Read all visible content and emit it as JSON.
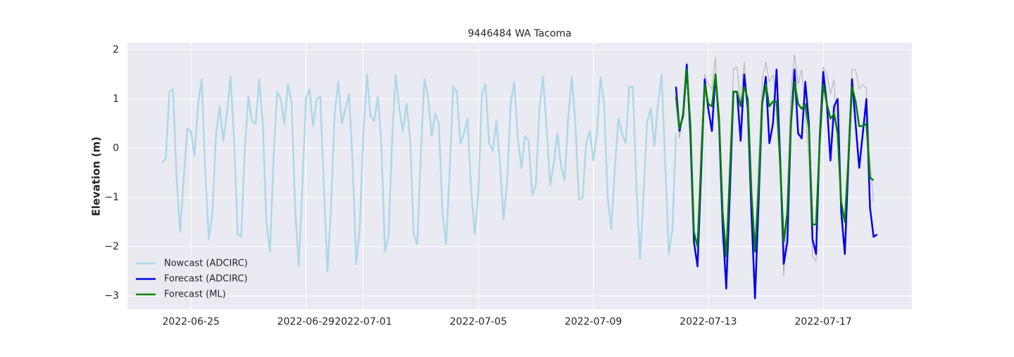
{
  "chart_data": {
    "type": "line",
    "title": "9446484 WA Tacoma",
    "ylabel": "Elevation (m)",
    "xlim": [
      "2022-06-22 19:00",
      "2022-07-20 02:00"
    ],
    "xticks": [
      "2022-06-25",
      "2022-06-29",
      "2022-07-01",
      "2022-07-05",
      "2022-07-09",
      "2022-07-13",
      "2022-07-17"
    ],
    "ylim": [
      -3.27,
      2.14
    ],
    "yticks": [
      {
        "value": -3,
        "label": "−3"
      },
      {
        "value": -2,
        "label": "−2"
      },
      {
        "value": -1,
        "label": "−1"
      },
      0,
      1,
      2
    ],
    "grid": true,
    "legend": "lower left",
    "series": [
      {
        "color": "#b0b0b0",
        "width": 1,
        "x": [
          "2022-07-11 21:00",
          "2022-07-12 00:00",
          "2022-07-12 03:00",
          "2022-07-12 06:00",
          "2022-07-12 09:00",
          "2022-07-12 12:00",
          "2022-07-12 15:00",
          "2022-07-12 18:00",
          "2022-07-12 21:00",
          "2022-07-13 00:00",
          "2022-07-13 03:00",
          "2022-07-13 06:00",
          "2022-07-13 09:00",
          "2022-07-13 12:00",
          "2022-07-13 15:00",
          "2022-07-13 18:00",
          "2022-07-13 21:00",
          "2022-07-14 00:00",
          "2022-07-14 03:00",
          "2022-07-14 06:00",
          "2022-07-14 09:00",
          "2022-07-14 12:00",
          "2022-07-14 15:00",
          "2022-07-14 18:00",
          "2022-07-14 21:00",
          "2022-07-15 00:00",
          "2022-07-15 03:00",
          "2022-07-15 06:00",
          "2022-07-15 09:00",
          "2022-07-15 12:00",
          "2022-07-15 15:00",
          "2022-07-15 18:00",
          "2022-07-15 21:00",
          "2022-07-16 00:00",
          "2022-07-16 03:00",
          "2022-07-16 06:00",
          "2022-07-16 09:00",
          "2022-07-16 12:00",
          "2022-07-16 15:00",
          "2022-07-16 18:00",
          "2022-07-16 21:00",
          "2022-07-17 00:00",
          "2022-07-17 03:00",
          "2022-07-17 06:00",
          "2022-07-17 09:00",
          "2022-07-17 12:00",
          "2022-07-17 15:00",
          "2022-07-17 18:00",
          "2022-07-17 21:00",
          "2022-07-18 00:00",
          "2022-07-18 03:00",
          "2022-07-18 06:00",
          "2022-07-18 09:00",
          "2022-07-18 12:00",
          "2022-07-18 15:00",
          "2022-07-18 18:00"
        ],
        "values": [
          0.9,
          0.2,
          0.8,
          1.75,
          0.2,
          -1.7,
          -2.0,
          0.2,
          1.5,
          1.3,
          1.2,
          1.85,
          0.3,
          -1.9,
          -2.3,
          -0.2,
          1.6,
          1.65,
          0.9,
          1.75,
          0.8,
          -1.4,
          -2.1,
          -0.3,
          1.4,
          1.75,
          1.35,
          1.5,
          0.9,
          -0.6,
          -2.6,
          -1.0,
          1.2,
          1.9,
          1.3,
          1.6,
          0.7,
          -0.2,
          -2.2,
          -2.3,
          0.2,
          1.65,
          1.5,
          1.1,
          1.4,
          0.1,
          -1.0,
          -2.1,
          0.2,
          1.6,
          1.6,
          1.2,
          1.3,
          1.2,
          -0.3,
          -1.1
        ]
      },
      {
        "name": "Nowcast (ADCIRC)",
        "color": "#add8e6",
        "width": 2.5,
        "x": [
          "2022-06-24 00:00",
          "2022-06-24 03:00",
          "2022-06-24 06:00",
          "2022-06-24 09:00",
          "2022-06-24 12:00",
          "2022-06-24 15:00",
          "2022-06-24 18:00",
          "2022-06-24 21:00",
          "2022-06-25 00:00",
          "2022-06-25 03:00",
          "2022-06-25 06:00",
          "2022-06-25 09:00",
          "2022-06-25 12:00",
          "2022-06-25 15:00",
          "2022-06-25 18:00",
          "2022-06-25 21:00",
          "2022-06-26 00:00",
          "2022-06-26 03:00",
          "2022-06-26 06:00",
          "2022-06-26 09:00",
          "2022-06-26 12:00",
          "2022-06-26 15:00",
          "2022-06-26 18:00",
          "2022-06-26 21:00",
          "2022-06-27 00:00",
          "2022-06-27 03:00",
          "2022-06-27 06:00",
          "2022-06-27 09:00",
          "2022-06-27 12:00",
          "2022-06-27 15:00",
          "2022-06-27 18:00",
          "2022-06-27 21:00",
          "2022-06-28 00:00",
          "2022-06-28 03:00",
          "2022-06-28 06:00",
          "2022-06-28 09:00",
          "2022-06-28 12:00",
          "2022-06-28 15:00",
          "2022-06-28 18:00",
          "2022-06-28 21:00",
          "2022-06-29 00:00",
          "2022-06-29 03:00",
          "2022-06-29 06:00",
          "2022-06-29 09:00",
          "2022-06-29 12:00",
          "2022-06-29 15:00",
          "2022-06-29 18:00",
          "2022-06-29 21:00",
          "2022-06-30 00:00",
          "2022-06-30 03:00",
          "2022-06-30 06:00",
          "2022-06-30 09:00",
          "2022-06-30 12:00",
          "2022-06-30 15:00",
          "2022-06-30 18:00",
          "2022-06-30 21:00",
          "2022-07-01 00:00",
          "2022-07-01 03:00",
          "2022-07-01 06:00",
          "2022-07-01 09:00",
          "2022-07-01 12:00",
          "2022-07-01 15:00",
          "2022-07-01 18:00",
          "2022-07-01 21:00",
          "2022-07-02 00:00",
          "2022-07-02 03:00",
          "2022-07-02 06:00",
          "2022-07-02 09:00",
          "2022-07-02 12:00",
          "2022-07-02 15:00",
          "2022-07-02 18:00",
          "2022-07-02 21:00",
          "2022-07-03 00:00",
          "2022-07-03 03:00",
          "2022-07-03 06:00",
          "2022-07-03 09:00",
          "2022-07-03 12:00",
          "2022-07-03 15:00",
          "2022-07-03 18:00",
          "2022-07-03 21:00",
          "2022-07-04 00:00",
          "2022-07-04 03:00",
          "2022-07-04 06:00",
          "2022-07-04 09:00",
          "2022-07-04 12:00",
          "2022-07-04 15:00",
          "2022-07-04 18:00",
          "2022-07-04 21:00",
          "2022-07-05 00:00",
          "2022-07-05 03:00",
          "2022-07-05 06:00",
          "2022-07-05 09:00",
          "2022-07-05 12:00",
          "2022-07-05 15:00",
          "2022-07-05 18:00",
          "2022-07-05 21:00",
          "2022-07-06 00:00",
          "2022-07-06 03:00",
          "2022-07-06 06:00",
          "2022-07-06 09:00",
          "2022-07-06 12:00",
          "2022-07-06 15:00",
          "2022-07-06 18:00",
          "2022-07-06 21:00",
          "2022-07-07 00:00",
          "2022-07-07 03:00",
          "2022-07-07 06:00",
          "2022-07-07 09:00",
          "2022-07-07 12:00",
          "2022-07-07 15:00",
          "2022-07-07 18:00",
          "2022-07-07 21:00",
          "2022-07-08 00:00",
          "2022-07-08 03:00",
          "2022-07-08 06:00",
          "2022-07-08 09:00",
          "2022-07-08 12:00",
          "2022-07-08 15:00",
          "2022-07-08 18:00",
          "2022-07-08 21:00",
          "2022-07-09 00:00",
          "2022-07-09 03:00",
          "2022-07-09 06:00",
          "2022-07-09 09:00",
          "2022-07-09 12:00",
          "2022-07-09 15:00",
          "2022-07-09 18:00",
          "2022-07-09 21:00",
          "2022-07-10 00:00",
          "2022-07-10 03:00",
          "2022-07-10 06:00",
          "2022-07-10 09:00",
          "2022-07-10 12:00",
          "2022-07-10 15:00",
          "2022-07-10 18:00",
          "2022-07-10 21:00",
          "2022-07-11 00:00",
          "2022-07-11 03:00",
          "2022-07-11 06:00",
          "2022-07-11 09:00",
          "2022-07-11 12:00",
          "2022-07-11 15:00",
          "2022-07-11 18:00",
          "2022-07-11 21:00"
        ],
        "values": [
          -0.3,
          -0.2,
          1.15,
          1.2,
          -0.6,
          -1.7,
          -0.6,
          0.4,
          0.35,
          -0.15,
          0.9,
          1.4,
          -0.5,
          -1.85,
          -1.3,
          0.3,
          0.85,
          0.15,
          0.7,
          1.45,
          0.2,
          -1.75,
          -1.8,
          0,
          1.05,
          0.55,
          0.5,
          1.4,
          0.5,
          -1.5,
          -2.1,
          -0.2,
          1.15,
          1.0,
          0.5,
          1.3,
          0.95,
          -1.2,
          -2.4,
          -0.8,
          1.0,
          1.2,
          0.45,
          1.0,
          1.05,
          -0.8,
          -2.5,
          -1.2,
          0.7,
          1.35,
          0.5,
          0.8,
          1.1,
          -0.3,
          -2.35,
          -1.6,
          0.3,
          1.5,
          0.65,
          0.55,
          1.05,
          0.1,
          -2.1,
          -1.8,
          0.2,
          1.5,
          0.8,
          0.35,
          0.9,
          0.2,
          -1.75,
          -1.95,
          -0.1,
          1.4,
          1.05,
          0.25,
          0.7,
          0.5,
          -1.3,
          -1.95,
          -0.5,
          1.25,
          1.15,
          0.1,
          0.3,
          0.6,
          -0.85,
          -1.75,
          -0.9,
          1.1,
          1.3,
          0.1,
          -0.05,
          0.55,
          -0.3,
          -1.45,
          -0.7,
          0.9,
          1.35,
          0.2,
          -0.4,
          0.25,
          0.15,
          -0.95,
          -0.75,
          0.8,
          1.45,
          0.4,
          -0.75,
          -0.3,
          0.3,
          -0.35,
          -0.65,
          0.6,
          1.45,
          0.5,
          -1.05,
          -1.0,
          0.1,
          0.35,
          -0.25,
          0.3,
          1.45,
          0.9,
          -1.0,
          -1.65,
          -0.4,
          0.6,
          0.3,
          0.1,
          1.25,
          1.25,
          -0.8,
          -2.25,
          -0.9,
          0.55,
          0.8,
          0.05,
          0.9,
          1.5,
          -0.3,
          -2.15,
          -1.65,
          0.3
        ]
      },
      {
        "name": "Forecast (ADCIRC)",
        "color": "#0000ee",
        "width": 2.5,
        "x": [
          "2022-07-11 21:00",
          "2022-07-12 00:00",
          "2022-07-12 03:00",
          "2022-07-12 06:00",
          "2022-07-12 09:00",
          "2022-07-12 12:00",
          "2022-07-12 15:00",
          "2022-07-12 18:00",
          "2022-07-12 21:00",
          "2022-07-13 00:00",
          "2022-07-13 03:00",
          "2022-07-13 06:00",
          "2022-07-13 09:00",
          "2022-07-13 12:00",
          "2022-07-13 15:00",
          "2022-07-13 18:00",
          "2022-07-13 21:00",
          "2022-07-14 00:00",
          "2022-07-14 03:00",
          "2022-07-14 06:00",
          "2022-07-14 09:00",
          "2022-07-14 12:00",
          "2022-07-14 15:00",
          "2022-07-14 18:00",
          "2022-07-14 21:00",
          "2022-07-15 00:00",
          "2022-07-15 03:00",
          "2022-07-15 06:00",
          "2022-07-15 09:00",
          "2022-07-15 12:00",
          "2022-07-15 15:00",
          "2022-07-15 18:00",
          "2022-07-15 21:00",
          "2022-07-16 00:00",
          "2022-07-16 03:00",
          "2022-07-16 06:00",
          "2022-07-16 09:00",
          "2022-07-16 12:00",
          "2022-07-16 15:00",
          "2022-07-16 18:00",
          "2022-07-16 21:00",
          "2022-07-17 00:00",
          "2022-07-17 03:00",
          "2022-07-17 06:00",
          "2022-07-17 09:00",
          "2022-07-17 12:00",
          "2022-07-17 15:00",
          "2022-07-17 18:00",
          "2022-07-17 21:00",
          "2022-07-18 00:00",
          "2022-07-18 03:00",
          "2022-07-18 06:00",
          "2022-07-18 09:00",
          "2022-07-18 12:00",
          "2022-07-18 15:00",
          "2022-07-18 18:00",
          "2022-07-18 21:00"
        ],
        "values": [
          1.25,
          0.35,
          0.7,
          1.7,
          0.3,
          -1.9,
          -2.4,
          -0.5,
          1.4,
          0.8,
          0.35,
          1.5,
          0.5,
          -1.6,
          -2.85,
          -0.9,
          1.15,
          1.15,
          0.15,
          1.5,
          0.8,
          -1.3,
          -3.05,
          -1.1,
          0.9,
          1.45,
          0.1,
          0.5,
          1.6,
          -0.2,
          -2.35,
          -1.9,
          0.5,
          1.6,
          0.3,
          0.2,
          1.35,
          0.5,
          -1.85,
          -2.15,
          0.2,
          1.55,
          0.9,
          -0.25,
          0.85,
          1.0,
          -1.3,
          -2.15,
          -0.3,
          1.4,
          0.5,
          -0.4,
          0.3,
          1.0,
          -1.2,
          -1.8,
          -1.75
        ]
      },
      {
        "name": "Forecast (ML)",
        "color": "#008000",
        "width": 2.5,
        "x": [
          "2022-07-11 21:00",
          "2022-07-12 00:00",
          "2022-07-12 03:00",
          "2022-07-12 06:00",
          "2022-07-12 09:00",
          "2022-07-12 12:00",
          "2022-07-12 15:00",
          "2022-07-12 18:00",
          "2022-07-12 21:00",
          "2022-07-13 00:00",
          "2022-07-13 03:00",
          "2022-07-13 06:00",
          "2022-07-13 09:00",
          "2022-07-13 12:00",
          "2022-07-13 15:00",
          "2022-07-13 18:00",
          "2022-07-13 21:00",
          "2022-07-14 00:00",
          "2022-07-14 03:00",
          "2022-07-14 06:00",
          "2022-07-14 09:00",
          "2022-07-14 12:00",
          "2022-07-14 15:00",
          "2022-07-14 18:00",
          "2022-07-14 21:00",
          "2022-07-15 00:00",
          "2022-07-15 03:00",
          "2022-07-15 06:00",
          "2022-07-15 09:00",
          "2022-07-15 12:00",
          "2022-07-15 15:00",
          "2022-07-15 18:00",
          "2022-07-15 21:00",
          "2022-07-16 00:00",
          "2022-07-16 03:00",
          "2022-07-16 06:00",
          "2022-07-16 09:00",
          "2022-07-16 12:00",
          "2022-07-16 15:00",
          "2022-07-16 18:00",
          "2022-07-16 21:00",
          "2022-07-17 00:00",
          "2022-07-17 03:00",
          "2022-07-17 06:00",
          "2022-07-17 09:00",
          "2022-07-17 12:00",
          "2022-07-17 15:00",
          "2022-07-17 18:00",
          "2022-07-17 21:00",
          "2022-07-18 00:00",
          "2022-07-18 03:00",
          "2022-07-18 06:00",
          "2022-07-18 09:00",
          "2022-07-18 12:00",
          "2022-07-18 15:00",
          "2022-07-18 18:00"
        ],
        "values": [
          1.05,
          0.4,
          0.65,
          1.6,
          0.5,
          -1.7,
          -2.0,
          -0.3,
          1.3,
          0.9,
          0.85,
          1.5,
          0.6,
          -1.3,
          -2.2,
          -0.5,
          1.15,
          1.15,
          0.85,
          1.25,
          1.0,
          -0.9,
          -2.1,
          -0.8,
          0.9,
          1.3,
          0.85,
          0.95,
          0.95,
          -0.3,
          -1.9,
          -1.3,
          0.5,
          1.35,
          0.9,
          0.8,
          0.9,
          0.4,
          -1.55,
          -1.55,
          0.1,
          1.3,
          0.9,
          0.6,
          0.7,
          0.3,
          -1.1,
          -1.5,
          -0.2,
          1.25,
          0.95,
          0.45,
          0.45,
          0.5,
          -0.6,
          -0.65
        ]
      }
    ]
  }
}
